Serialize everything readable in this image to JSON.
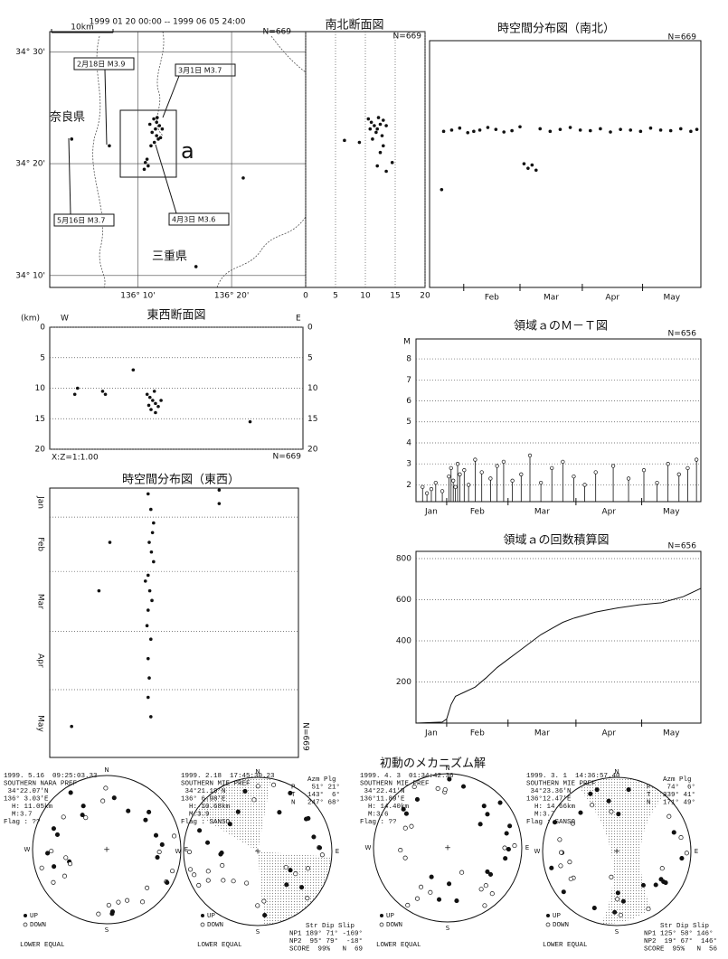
{
  "map": {
    "period": "1999 01 20 00:00 -- 1999 06 05 24:00",
    "scale": "10km",
    "pref_nara": "奈良県",
    "pref_mie": "三重県",
    "region": "a",
    "events": [
      "2月18日 M3.9",
      "3月1日 M3.7",
      "5月16日 M3.7",
      "4月3日 M3.6"
    ]
  },
  "chart_data": [
    {
      "type": "scatter",
      "n_label": "N=669",
      "xlim": [
        136.01,
        136.465
      ],
      "ylim": [
        34.149,
        34.53
      ],
      "xticks": [
        {
          "value": 136.1667,
          "label": "136° 10'"
        },
        {
          "value": 136.3333,
          "label": "136° 20'"
        }
      ],
      "yticks": [
        {
          "value": 34.5,
          "label": "34° 30'"
        },
        {
          "value": 34.3333,
          "label": "34° 20'"
        },
        {
          "value": 34.1667,
          "label": "34° 10'"
        }
      ],
      "grid": true,
      "x": [
        136.195,
        136.2,
        136.205,
        136.198,
        136.192,
        136.2,
        136.21,
        136.203,
        136.196,
        136.19,
        136.188,
        136.201,
        136.207,
        136.18,
        136.185,
        136.178,
        136.183,
        136.116,
        136.049,
        136.354,
        136.27
      ],
      "y": [
        34.4,
        34.395,
        34.39,
        34.385,
        34.38,
        34.375,
        34.385,
        34.37,
        34.365,
        34.36,
        34.392,
        34.402,
        34.372,
        34.335,
        34.33,
        34.325,
        34.34,
        34.36,
        34.37,
        34.312,
        34.18
      ]
    },
    {
      "type": "scatter",
      "title": "南北断面図",
      "n_label": "N=669",
      "xlim": [
        0,
        20
      ],
      "ylim": [
        34.149,
        34.53
      ],
      "xticks": [
        0,
        5,
        10,
        15,
        20
      ],
      "grid": true,
      "x": [
        10.5,
        11,
        11.5,
        12,
        12.5,
        13,
        11.8,
        12.2,
        10.8,
        13.5,
        12.8,
        11.2,
        13,
        12.5,
        9,
        6.5,
        12,
        13.5,
        14.5
      ],
      "y": [
        34.4,
        34.395,
        34.39,
        34.385,
        34.392,
        34.398,
        34.38,
        34.402,
        34.385,
        34.39,
        34.375,
        34.37,
        34.36,
        34.35,
        34.365,
        34.368,
        34.33,
        34.322,
        34.335
      ]
    },
    {
      "type": "scatter",
      "title": "時空間分布図（南北）",
      "n_label": "N=669",
      "xlim": [
        15,
        150
      ],
      "ylim": [
        34.149,
        34.53
      ],
      "month_starts": [
        32,
        60,
        91,
        121
      ],
      "month_labels": [
        "Feb",
        "Mar",
        "Apr",
        "May"
      ],
      "x": [
        22,
        26,
        30,
        34,
        37,
        40,
        44,
        48,
        52,
        56,
        60,
        62,
        64,
        66,
        68,
        70,
        75,
        80,
        85,
        90,
        95,
        100,
        105,
        110,
        115,
        120,
        125,
        130,
        135,
        140,
        145,
        148,
        21
      ],
      "y": [
        34.39,
        34.392,
        34.395,
        34.388,
        34.39,
        34.392,
        34.396,
        34.393,
        34.389,
        34.391,
        34.397,
        34.34,
        34.333,
        34.338,
        34.33,
        34.394,
        34.39,
        34.393,
        34.396,
        34.392,
        34.391,
        34.394,
        34.389,
        34.393,
        34.392,
        34.39,
        34.395,
        34.392,
        34.391,
        34.394,
        34.39,
        34.393,
        34.3
      ]
    },
    {
      "type": "scatter",
      "title": "東西断面図",
      "unit_label": "(km)",
      "left_label": "W",
      "right_label": "E",
      "ratio_label": "X:Z=1:1.00",
      "n_label": "N=669",
      "xlim": [
        136.01,
        136.465
      ],
      "ylim": [
        0,
        20
      ],
      "y_inverted": true,
      "yticks": [
        0,
        5,
        10,
        15,
        20
      ],
      "both_sides": true,
      "grid": true,
      "x": [
        136.19,
        136.195,
        136.2,
        136.185,
        136.205,
        136.198,
        136.192,
        136.21,
        136.188,
        136.2,
        136.06,
        136.055,
        136.105,
        136.11,
        136.16,
        136.37
      ],
      "y": [
        11.5,
        12,
        12.5,
        11,
        13,
        10.5,
        13.5,
        12,
        12.8,
        14,
        10,
        11,
        10.5,
        11,
        7,
        15.5
      ]
    },
    {
      "type": "scatter",
      "title": "時空間分布図（東西）",
      "n_label": "N=669",
      "xlim": [
        136.01,
        136.465
      ],
      "ylim": [
        17,
        156
      ],
      "y_inverted": true,
      "month_starts": [
        1,
        32,
        60,
        91,
        121
      ],
      "month_labels": [
        "Jan",
        "Feb",
        "Mar",
        "Apr",
        "May"
      ],
      "month_axis": "y",
      "x": [
        136.19,
        136.195,
        136.2,
        136.198,
        136.192,
        136.196,
        136.2,
        136.19,
        136.185,
        136.193,
        136.197,
        136.19,
        136.188,
        136.195,
        136.19,
        136.192,
        136.19,
        136.195,
        136.12,
        136.1,
        136.05,
        136.32,
        136.32
      ],
      "y": [
        20,
        28,
        35,
        40,
        45,
        50,
        55,
        62,
        65,
        70,
        75,
        80,
        88,
        95,
        105,
        115,
        125,
        135,
        45,
        70,
        140,
        18,
        25
      ]
    },
    {
      "type": "stem",
      "title": "領域ａのＭ－Ｔ図",
      "y_label": "M",
      "n_label": "N=656",
      "xlim": [
        18,
        148
      ],
      "ylim": [
        1.2,
        8.95
      ],
      "yticks": [
        2,
        3,
        4,
        5,
        6,
        7,
        8
      ],
      "grid": true,
      "month_starts": [
        1,
        32,
        60,
        91,
        121
      ],
      "month_labels": [
        "Jan",
        "Feb",
        "Mar",
        "Apr",
        "May"
      ],
      "x": [
        21,
        23,
        25,
        27,
        30,
        33,
        34,
        35,
        36,
        37,
        38,
        40,
        42,
        45,
        48,
        52,
        55,
        58,
        62,
        66,
        70,
        75,
        80,
        85,
        90,
        95,
        100,
        108,
        115,
        122,
        128,
        133,
        138,
        142,
        146
      ],
      "y": [
        1.9,
        1.6,
        1.8,
        2.1,
        1.7,
        2.4,
        2.8,
        2.2,
        1.9,
        3.0,
        2.5,
        2.7,
        2.0,
        3.2,
        2.6,
        2.3,
        2.9,
        3.1,
        2.2,
        2.5,
        3.4,
        2.1,
        2.8,
        3.1,
        2.4,
        2.0,
        2.6,
        2.9,
        2.3,
        2.7,
        2.1,
        3.0,
        2.5,
        2.8,
        3.2
      ]
    },
    {
      "type": "line",
      "title": "領域ａの回数積算図",
      "n_label": "N=656",
      "xlim": [
        18,
        148
      ],
      "ylim": [
        0,
        835
      ],
      "yticks": [
        200,
        400,
        600,
        800
      ],
      "grid": true,
      "month_starts": [
        1,
        32,
        60,
        91,
        121
      ],
      "month_labels": [
        "Jan",
        "Feb",
        "Mar",
        "Apr",
        "May"
      ],
      "x": [
        18,
        30,
        32,
        34,
        36,
        40,
        45,
        50,
        55,
        60,
        65,
        70,
        75,
        80,
        85,
        90,
        100,
        110,
        120,
        130,
        140,
        148
      ],
      "y": [
        0,
        5,
        20,
        90,
        130,
        150,
        175,
        220,
        270,
        310,
        350,
        390,
        430,
        460,
        490,
        510,
        540,
        560,
        575,
        585,
        615,
        655
      ]
    }
  ],
  "mechanism": {
    "title": "初動のメカニズム解",
    "compass": [
      "N",
      "E",
      "S",
      "W"
    ],
    "up": "UP",
    "down": "DOWN",
    "projection": "LOWER EQUAL",
    "solutions": [
      {
        "lines": [
          "1999. 5.16  09:25:03.33",
          "SOUTHERN NARA PREF",
          " 34°22.07'N",
          "136° 3.03'E",
          "  H: 11.05km",
          "  M:3.7",
          "Flag : ??"
        ]
      },
      {
        "lines": [
          "1999. 2.18  17:45:30.23",
          "SOUTHERN MIE PREF",
          " 34°21.19'N",
          "136° 6.98'E",
          "  H: 10.68km",
          "  M:3.9",
          "Flag : SANSO"
        ],
        "axes": [
          "    Azm Plg",
          "P    51° 21°",
          "T   143°  6°",
          "N   247° 68°"
        ],
        "planes": [
          "    Str Dip Slip",
          "NP1 189° 71° -169°",
          "NP2  95° 79°  -18°",
          "SCORE  99%   N  69"
        ]
      },
      {
        "lines": [
          "1999. 4. 3  01:34:42.36",
          "SOUTHERN MIE PREF",
          " 34°22.41'N",
          "136°11.89'E",
          "  H: 14.40km",
          "  M:3.6",
          "Flag : ??"
        ]
      },
      {
        "lines": [
          "1999. 3. 1  14:36:57.40",
          "SOUTHERN MIE PREF",
          " 34°23.36'N",
          "136°12.47'E",
          "  H: 14.66km",
          "  M:3.7",
          "Flag : SANSO"
        ],
        "axes": [
          "    Azm Plg",
          "P    74°  6°",
          "T   339° 41°",
          "N   171° 49°"
        ],
        "planes": [
          "    Str Dip Slip",
          "NP1 125° 58° 146°",
          "NP2  19° 67°  146°",
          "SCORE  95%   N  56"
        ]
      }
    ]
  }
}
